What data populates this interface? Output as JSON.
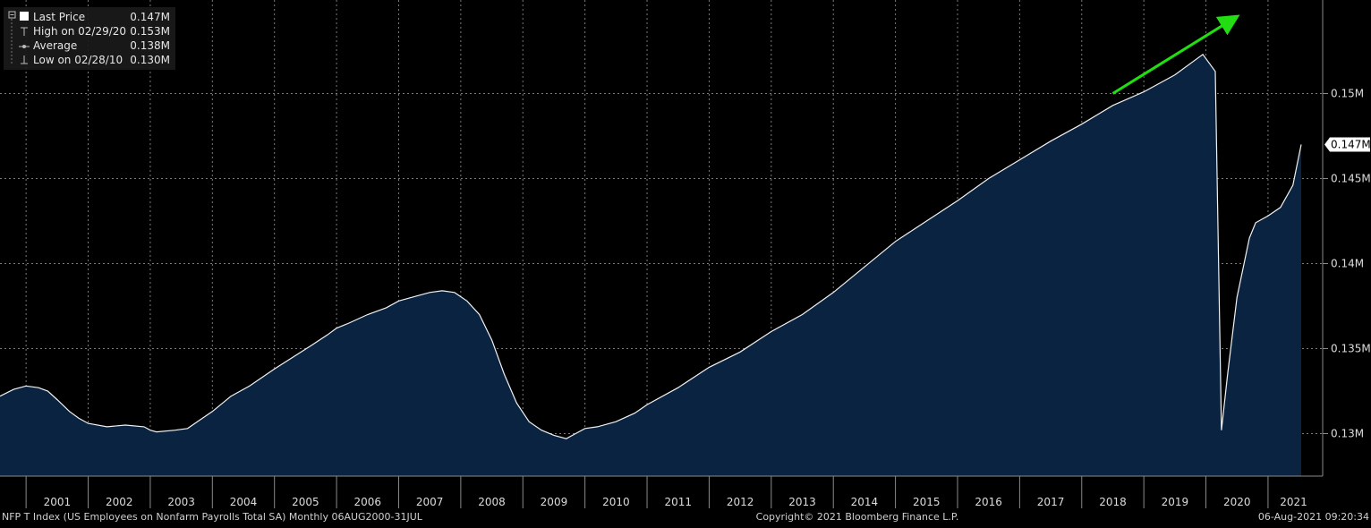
{
  "chart_data": {
    "type": "area",
    "ticker_description": "NFP T Index (US Employees on Nonfarm Payrolls Total SA)  Monthly 06AUG2000-31JUL",
    "copyright": "Copyright© 2021 Bloomberg Finance L.P.",
    "timestamp": "06-Aug-2021 09:20:34",
    "legend": [
      {
        "label": "Last Price",
        "value": "0.147M"
      },
      {
        "label": "High on 02/29/20",
        "value": "0.153M"
      },
      {
        "label": "Average",
        "value": "0.138M"
      },
      {
        "label": "Low on 02/28/10",
        "value": "0.130M"
      }
    ],
    "last_price_label": "0.147M",
    "y_ticks": [
      {
        "value": 0.13,
        "label": "0.13M"
      },
      {
        "value": 0.135,
        "label": "0.135M"
      },
      {
        "value": 0.14,
        "label": "0.14M"
      },
      {
        "value": 0.145,
        "label": "0.145M"
      },
      {
        "value": 0.15,
        "label": "0.15M"
      }
    ],
    "ylim": [
      0.1275,
      0.1555
    ],
    "xlim": [
      2000.58,
      2021.88
    ],
    "x_ticks": [
      "2001",
      "2002",
      "2003",
      "2004",
      "2005",
      "2006",
      "2007",
      "2008",
      "2009",
      "2010",
      "2011",
      "2012",
      "2013",
      "2014",
      "2015",
      "2016",
      "2017",
      "2018",
      "2019",
      "2020",
      "2021"
    ],
    "x_ticks_year_start": 2001,
    "grid": true,
    "legend_position": "top-left",
    "colors": {
      "fill": "#0a2340",
      "line": "#f2f2f2",
      "grid": "#7a7a7a",
      "arrow": "#22dd11"
    },
    "series": [
      {
        "x": [
          2000.58,
          2000.8,
          2001.0,
          2001.2,
          2001.35,
          2001.5,
          2001.7,
          2001.85,
          2002.0,
          2002.3,
          2002.6,
          2002.9,
          2003.0,
          2003.1,
          2003.4,
          2003.6,
          2003.8,
          2004.0,
          2004.3,
          2004.6,
          2004.8,
          2005.0,
          2005.3,
          2005.6,
          2005.85,
          2006.0,
          2006.2,
          2006.5,
          2006.8,
          2007.0,
          2007.3,
          2007.5,
          2007.7,
          2007.9,
          2008.1,
          2008.3,
          2008.5,
          2008.7,
          2008.9,
          2009.1,
          2009.3,
          2009.5,
          2009.7,
          2009.85,
          2010.0,
          2010.2,
          2010.5,
          2010.8,
          2011.0,
          2011.5,
          2012.0,
          2012.5,
          2013.0,
          2013.5,
          2014.0,
          2014.5,
          2015.0,
          2015.5,
          2016.0,
          2016.5,
          2017.0,
          2017.5,
          2018.0,
          2018.5,
          2019.0,
          2019.5,
          2019.95,
          2020.15,
          2020.25,
          2020.35,
          2020.5,
          2020.7,
          2020.8,
          2021.0,
          2021.2,
          2021.4,
          2021.5
        ],
        "y": [
          0.1322,
          0.1326,
          0.1328,
          0.1327,
          0.1325,
          0.132,
          0.1313,
          0.1309,
          0.1306,
          0.1304,
          0.1305,
          0.1304,
          0.1302,
          0.1301,
          0.1302,
          0.1303,
          0.1308,
          0.1313,
          0.1322,
          0.1328,
          0.1333,
          0.1338,
          0.1345,
          0.1352,
          0.1358,
          0.1362,
          0.1365,
          0.137,
          0.1374,
          0.1378,
          0.1381,
          0.1383,
          0.1384,
          0.1383,
          0.1378,
          0.137,
          0.1355,
          0.1335,
          0.1318,
          0.1307,
          0.1302,
          0.1299,
          0.1297,
          0.13,
          0.1303,
          0.1304,
          0.1307,
          0.1312,
          0.1317,
          0.1327,
          0.1339,
          0.1348,
          0.136,
          0.137,
          0.1383,
          0.1398,
          0.1413,
          0.1425,
          0.1437,
          0.145,
          0.1461,
          0.1472,
          0.1482,
          0.1493,
          0.1501,
          0.1511,
          0.1523,
          0.1513,
          0.1302,
          0.1335,
          0.138,
          0.1415,
          0.1424,
          0.1428,
          0.1433,
          0.1446,
          0.147
        ]
      }
    ],
    "annotation_arrow": {
      "x1": 2018.5,
      "y1": 0.15,
      "x2": 2020.4,
      "y2": 0.1543
    }
  }
}
